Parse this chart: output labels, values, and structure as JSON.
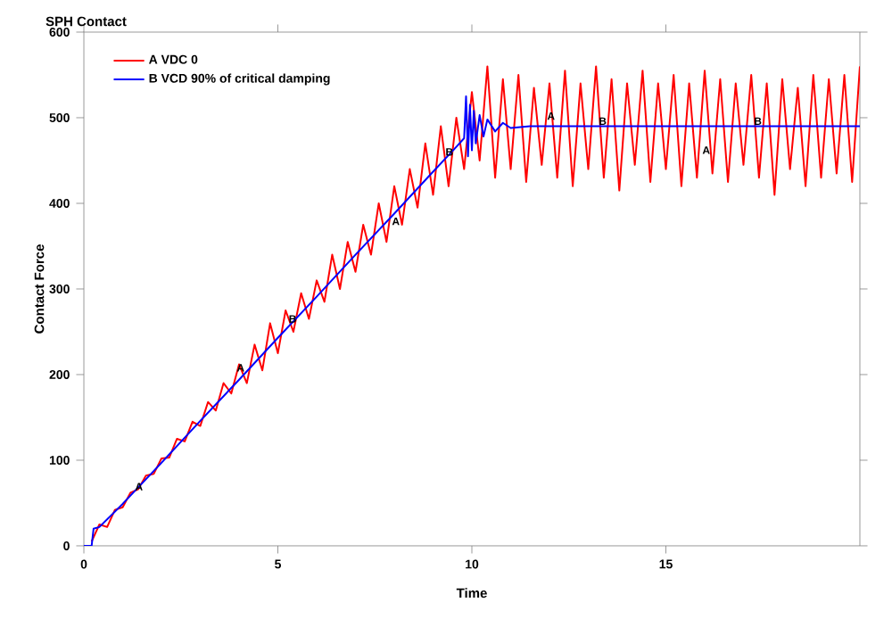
{
  "chart_data": {
    "type": "line",
    "title": "SPH Contact",
    "xlabel": "Time",
    "ylabel": "Contact Force",
    "xlim": [
      0,
      20
    ],
    "ylim": [
      0,
      600
    ],
    "xticks": [
      0,
      5,
      10,
      15
    ],
    "yticks": [
      0,
      100,
      200,
      300,
      400,
      500,
      600
    ],
    "legend": "top left",
    "marker": "none",
    "line_style": "solid",
    "grid": false,
    "series": [
      {
        "name": "A VDC 0",
        "color": "#ff0000",
        "x": [
          0.2,
          0.4,
          0.6,
          0.8,
          1.0,
          1.2,
          1.4,
          1.6,
          1.8,
          2.0,
          2.2,
          2.4,
          2.6,
          2.8,
          3.0,
          3.2,
          3.4,
          3.6,
          3.8,
          4.0,
          4.2,
          4.4,
          4.6,
          4.8,
          5.0,
          5.2,
          5.4,
          5.6,
          5.8,
          6.0,
          6.2,
          6.4,
          6.6,
          6.8,
          7.0,
          7.2,
          7.4,
          7.6,
          7.8,
          8.0,
          8.2,
          8.4,
          8.6,
          8.8,
          9.0,
          9.2,
          9.4,
          9.6,
          9.8,
          10.0,
          10.2,
          10.4,
          10.6,
          10.8,
          11.0,
          11.2,
          11.4,
          11.6,
          11.8,
          12.0,
          12.2,
          12.4,
          12.6,
          12.8,
          13.0,
          13.2,
          13.4,
          13.6,
          13.8,
          14.0,
          14.2,
          14.4,
          14.6,
          14.8,
          15.0,
          15.2,
          15.4,
          15.6,
          15.8,
          16.0,
          16.2,
          16.4,
          16.6,
          16.8,
          17.0,
          17.2,
          17.4,
          17.6,
          17.8,
          18.0,
          18.2,
          18.4,
          18.6,
          18.8,
          19.0,
          19.2,
          19.4,
          19.6,
          19.8,
          20.0
        ],
        "values": [
          5,
          25,
          22,
          42,
          45,
          62,
          66,
          82,
          84,
          102,
          103,
          125,
          122,
          145,
          140,
          168,
          158,
          190,
          178,
          212,
          190,
          235,
          205,
          260,
          225,
          275,
          250,
          295,
          265,
          310,
          285,
          340,
          300,
          355,
          320,
          375,
          340,
          400,
          355,
          420,
          375,
          440,
          395,
          470,
          410,
          490,
          420,
          500,
          440,
          530,
          450,
          560,
          430,
          545,
          440,
          550,
          425,
          535,
          445,
          540,
          430,
          555,
          420,
          540,
          440,
          560,
          430,
          545,
          415,
          540,
          445,
          555,
          425,
          540,
          440,
          550,
          420,
          540,
          430,
          555,
          435,
          545,
          425,
          540,
          445,
          550,
          430,
          540,
          410,
          545,
          440,
          535,
          420,
          550,
          430,
          545,
          435,
          550,
          425,
          560
        ]
      },
      {
        "name": "B VCD 90% of critical damping",
        "color": "#0000ff",
        "x": [
          0,
          0.2,
          0.25,
          0.4,
          1,
          2,
          3,
          4,
          5,
          6,
          7,
          8,
          9,
          9.6,
          9.8,
          9.85,
          9.9,
          9.95,
          10.0,
          10.05,
          10.1,
          10.2,
          10.3,
          10.4,
          10.6,
          10.8,
          11.0,
          11.5,
          20
        ],
        "values": [
          0,
          0,
          20,
          22,
          49,
          97,
          146,
          194,
          243,
          291,
          340,
          388,
          437,
          466,
          476,
          525,
          455,
          515,
          462,
          508,
          470,
          503,
          478,
          498,
          484,
          494,
          488,
          490,
          490
        ]
      }
    ],
    "annotations": [
      {
        "text": "A",
        "x": 1.42,
        "y": 69
      },
      {
        "text": "A",
        "x": 4.04,
        "y": 208
      },
      {
        "text": "B",
        "x": 5.38,
        "y": 265
      },
      {
        "text": "A",
        "x": 8.04,
        "y": 379
      },
      {
        "text": "B",
        "x": 9.42,
        "y": 460
      },
      {
        "text": "A",
        "x": 12.04,
        "y": 502
      },
      {
        "text": "B",
        "x": 13.37,
        "y": 496
      },
      {
        "text": "A",
        "x": 16.04,
        "y": 462
      },
      {
        "text": "B",
        "x": 17.37,
        "y": 496
      }
    ]
  }
}
